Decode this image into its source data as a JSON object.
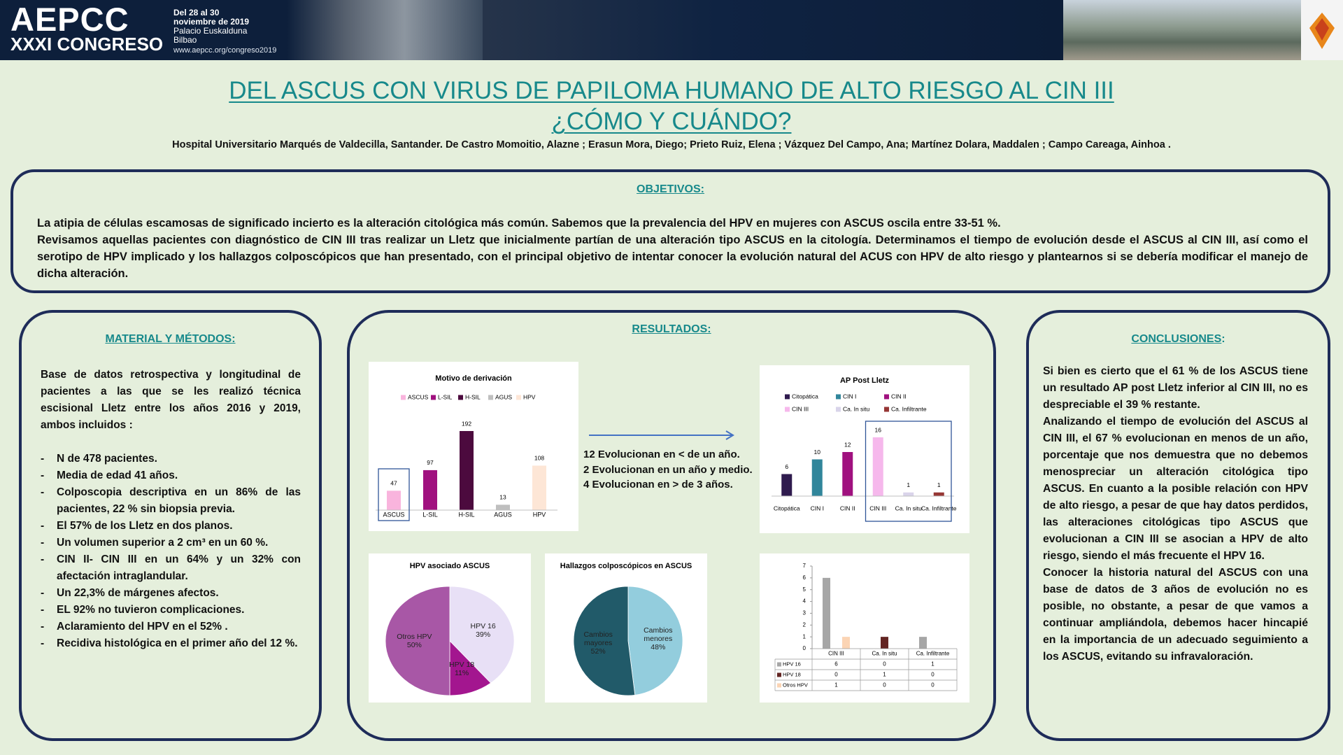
{
  "header": {
    "logo": "AEPCC",
    "congress": "XXXI CONGRESO",
    "dates": [
      "Del 28 al 30",
      "noviembre de 2019",
      "Palacio Euskalduna",
      "Bilbao"
    ],
    "url": "www.aepcc.org/congreso2019"
  },
  "title": [
    "DEL ASCUS CON VIRUS DE PAPILOMA HUMANO DE ALTO RIESGO AL CIN III",
    "¿CÓMO Y CUÁNDO?"
  ],
  "authors": "Hospital Universitario Marqués de Valdecilla, Santander. De Castro Momoitio, Alazne ; Erasun Mora, Diego; Prieto Ruiz, Elena ; Vázquez Del Campo, Ana; Martínez Dolara, Maddalen ; Campo Careaga, Ainhoa .",
  "objectives": {
    "heading": "OBJETIVOS:",
    "paragraphs": [
      "La atipia de células escamosas de significado incierto  es la alteración citológica más común. Sabemos que la prevalencia del HPV en mujeres con ASCUS oscila entre 33-51 %.",
      "Revisamos aquellas pacientes  con diagnóstico de CIN III tras realizar un Lletz que inicialmente partían de una alteración tipo ASCUS en la citología. Determinamos  el tiempo de evolución desde el  ASCUS al CIN III, así como el serotipo de HPV implicado y los hallazgos colposcópicos que han presentado, con el principal objetivo de intentar conocer la evolución natural del ACUS con HPV de alto riesgo y plantearnos si se debería modificar el manejo de dicha alteración."
    ]
  },
  "methods": {
    "heading": "MATERIAL Y MÉTODOS:",
    "intro": "Base de datos retrospectiva y longitudinal de pacientes a las que se les realizó técnica escisional Lletz entre los años 2016 y 2019, ambos incluidos :",
    "items": [
      "N de 478 pacientes.",
      "Media de  edad 41 años.",
      "Colposcopia descriptiva en un 86% de las pacientes, 22 % sin biopsia previa.",
      "El 57% de los Lletz  en dos planos.",
      "Un volumen superior a 2 cm³  en un 60 %.",
      "CIN II- CIN III en un 64% y un 32% con afectación intraglandular.",
      "Un  22,3% de márgenes afectos.",
      "EL 92% no tuvieron complicaciones.",
      "Aclaramiento del HPV en el  52% .",
      "Recidiva histológica en el primer año del 12 %."
    ]
  },
  "results": {
    "heading": "RESULTADOS:",
    "evolution": [
      "12 Evolucionan en < de un año.",
      "2 Evolucionan en un año y medio.",
      "4 Evolucionan en > de 3 años."
    ],
    "charts": [
      {
        "type": "bar",
        "title": "Motivo de derivación",
        "categories": [
          "ASCUS",
          "L-SIL",
          "H-SIL",
          "AGUS",
          "HPV"
        ],
        "values": [
          47,
          97,
          192,
          13,
          108
        ],
        "colors": [
          "#f9b4dd",
          "#a0117f",
          "#4c0a3e",
          "#bfbfbf",
          "#fde6d6"
        ],
        "legend": true
      },
      {
        "type": "bar",
        "title": "AP Post Lletz",
        "categories": [
          "Citopática",
          "CIN I",
          "CIN II",
          "CIN III",
          "Ca. In situ",
          "Ca. Infiltrante"
        ],
        "values": [
          6,
          10,
          12,
          16,
          1,
          1
        ],
        "colors": [
          "#2f1b4e",
          "#31869b",
          "#a0117f",
          "#f6b8ec",
          "#d9d4ea",
          "#963634"
        ],
        "legend": true
      },
      {
        "type": "pie",
        "title": "HPV asociado ASCUS",
        "labels": [
          "HPV 16",
          "HPV 18",
          "Otros HPV"
        ],
        "values": [
          39,
          11,
          50
        ],
        "value_labels": [
          "39%",
          "11%",
          "50%"
        ],
        "colors": [
          "#e8e0f6",
          "#a3168f",
          "#a857a6"
        ]
      },
      {
        "type": "pie",
        "title": "Hallazgos colposcópicos en ASCUS",
        "labels": [
          "Cambios menores",
          "Cambios mayores"
        ],
        "values": [
          48,
          52
        ],
        "value_labels": [
          "48%",
          "52%"
        ],
        "colors": [
          "#93cddd",
          "#215a69"
        ]
      },
      {
        "type": "bar",
        "categories": [
          "CIN III",
          "Ca. In situ",
          "Ca. Infiltrante"
        ],
        "series": [
          {
            "name": "HPV 16",
            "color": "#a6a6a6",
            "values": [
              6,
              0,
              1
            ]
          },
          {
            "name": "HPV 18",
            "color": "#632523",
            "values": [
              0,
              1,
              0
            ]
          },
          {
            "name": "Otros HPV",
            "color": "#fbd4b4",
            "values": [
              1,
              0,
              0
            ]
          }
        ],
        "ylim": [
          0,
          7
        ],
        "yticks": [
          0,
          1,
          2,
          3,
          4,
          5,
          6,
          7
        ],
        "data_table": true
      }
    ]
  },
  "conclusions": {
    "heading": "CONCLUSIONES",
    "heading_suffix": ":",
    "paragraphs": [
      "Si bien es cierto que el 61 % de los ASCUS tiene un resultado AP post Lletz inferior al CIN III, no es despreciable el 39 % restante.",
      "Analizando el tiempo de evolución del ASCUS al CIN III, el 67 % evolucionan en menos de un año, porcentaje  que nos demuestra  que no debemos menospreciar un alteración citológica tipo ASCUS.  En cuanto a la posible relación con HPV de alto riesgo,  a pesar de que  hay datos perdidos,  las alteraciones citológicas tipo ASCUS que evolucionan a CIN III se asocian  a HPV de alto riesgo, siendo el más frecuente el HPV 16.",
      "Conocer la historia natural del ASCUS  con una base de datos de 3 años de evolución no es posible, no obstante, a pesar de que vamos a continuar ampliándola,  debemos hacer hincapié en la importancia de un adecuado seguimiento a los  ASCUS, evitando su infravaloración."
    ]
  }
}
